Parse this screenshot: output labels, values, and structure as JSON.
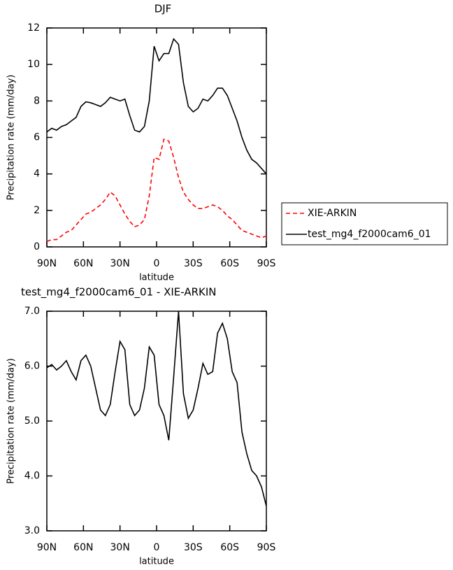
{
  "chart_data": [
    {
      "type": "line",
      "title": "DJF",
      "xlabel": "latitude",
      "ylabel": "Precipitation rate (mm/day)",
      "x": [
        90,
        86,
        82,
        78,
        74,
        70,
        66,
        62,
        58,
        54,
        50,
        46,
        42,
        38,
        34,
        30,
        26,
        22,
        18,
        14,
        10,
        6,
        2,
        -2,
        -6,
        -10,
        -14,
        -18,
        -22,
        -26,
        -30,
        -34,
        -38,
        -42,
        -46,
        -50,
        -54,
        -58,
        -62,
        -66,
        -70,
        -74,
        -78,
        -82,
        -86,
        -90
      ],
      "series": [
        {
          "name": "XIE-ARKIN",
          "color": "#ff0000",
          "dashed": true,
          "values": [
            0.3,
            0.4,
            0.4,
            0.6,
            0.8,
            0.9,
            1.2,
            1.5,
            1.8,
            1.9,
            2.1,
            2.3,
            2.6,
            3.0,
            2.8,
            2.3,
            1.8,
            1.4,
            1.1,
            1.2,
            1.5,
            2.8,
            4.9,
            4.8,
            5.9,
            5.8,
            4.9,
            3.8,
            3.0,
            2.6,
            2.3,
            2.1,
            2.1,
            2.2,
            2.3,
            2.2,
            2.0,
            1.7,
            1.5,
            1.2,
            0.9,
            0.8,
            0.7,
            0.6,
            0.5,
            0.6
          ]
        },
        {
          "name": "test_mg4_f2000cam6_01",
          "color": "#000000",
          "dashed": false,
          "values": [
            6.3,
            6.5,
            6.4,
            6.6,
            6.7,
            6.9,
            7.1,
            7.7,
            7.95,
            7.9,
            7.8,
            7.7,
            7.9,
            8.2,
            8.1,
            8.0,
            8.1,
            7.2,
            6.4,
            6.3,
            6.6,
            8.0,
            11.0,
            10.2,
            10.6,
            10.6,
            11.4,
            11.1,
            9.0,
            7.7,
            7.4,
            7.6,
            8.1,
            8.0,
            8.3,
            8.7,
            8.7,
            8.3,
            7.6,
            6.9,
            6.0,
            5.3,
            4.8,
            4.6,
            4.3,
            4.0
          ]
        }
      ],
      "xlim": [
        90,
        -90
      ],
      "xticks": [
        {
          "value": 90,
          "label": "90N"
        },
        {
          "value": 60,
          "label": "60N"
        },
        {
          "value": 30,
          "label": "30N"
        },
        0,
        {
          "value": -30,
          "label": "30S"
        },
        {
          "value": -60,
          "label": "60S"
        },
        {
          "value": -90,
          "label": "90S"
        }
      ],
      "ylim": [
        0,
        12
      ],
      "yticks": [
        0,
        2,
        4,
        6,
        8,
        10,
        12
      ],
      "legend": "right"
    },
    {
      "type": "line",
      "title": "test_mg4_f2000cam6_01 - XIE-ARKIN",
      "xlabel": "latitude",
      "ylabel": "Precipitation rate (mm/day)",
      "x": [
        90,
        86,
        82,
        78,
        74,
        70,
        66,
        62,
        58,
        54,
        50,
        46,
        42,
        38,
        34,
        30,
        26,
        22,
        18,
        14,
        10,
        6,
        2,
        -2,
        -6,
        -10,
        -14,
        -18,
        -22,
        -26,
        -30,
        -34,
        -38,
        -42,
        -46,
        -50,
        -54,
        -58,
        -62,
        -66,
        -70,
        -74,
        -78,
        -82,
        -86,
        -90
      ],
      "series": [
        {
          "color": "#000000",
          "dashed": false,
          "values": [
            5.97,
            6.03,
            5.93,
            6.0,
            6.1,
            5.9,
            5.75,
            6.1,
            6.2,
            6.0,
            5.6,
            5.2,
            5.1,
            5.3,
            5.9,
            6.45,
            6.3,
            5.3,
            5.1,
            5.2,
            5.6,
            6.35,
            6.2,
            5.3,
            5.1,
            4.65,
            5.8,
            7.0,
            5.5,
            5.05,
            5.2,
            5.6,
            6.05,
            5.85,
            5.9,
            6.6,
            6.78,
            6.5,
            5.9,
            5.7,
            4.8,
            4.4,
            4.1,
            4.0,
            3.8,
            3.45
          ]
        }
      ],
      "xlim": [
        90,
        -90
      ],
      "xticks": [
        {
          "value": 90,
          "label": "90N"
        },
        {
          "value": 60,
          "label": "60N"
        },
        {
          "value": 30,
          "label": "30N"
        },
        0,
        {
          "value": -30,
          "label": "30S"
        },
        {
          "value": -60,
          "label": "60S"
        },
        {
          "value": -90,
          "label": "90S"
        }
      ],
      "ylim": [
        3,
        7
      ],
      "yticks": [
        {
          "value": 3,
          "label": "3.0"
        },
        {
          "value": 4,
          "label": "4.0"
        },
        {
          "value": 5,
          "label": "5.0"
        },
        {
          "value": 6,
          "label": "6.0"
        },
        {
          "value": 7,
          "label": "7.0"
        }
      ]
    }
  ]
}
